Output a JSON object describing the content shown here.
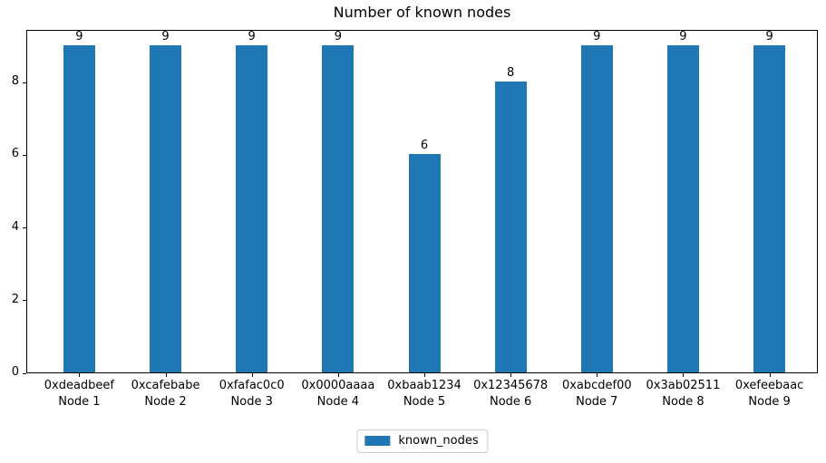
{
  "figure": {
    "title": "Number of known nodes"
  },
  "chart_data": {
    "type": "bar",
    "title": "Number of known nodes",
    "categories": [
      {
        "address": "0xdeadbeef",
        "node": "Node 1"
      },
      {
        "address": "0xcafebabe",
        "node": "Node 2"
      },
      {
        "address": "0xfafac0c0",
        "node": "Node 3"
      },
      {
        "address": "0x0000aaaa",
        "node": "Node 4"
      },
      {
        "address": "0xbaab1234",
        "node": "Node 5"
      },
      {
        "address": "0x12345678",
        "node": "Node 6"
      },
      {
        "address": "0xabcdef00",
        "node": "Node 7"
      },
      {
        "address": "0x3ab02511",
        "node": "Node 8"
      },
      {
        "address": "0xefeebaac",
        "node": "Node 9"
      }
    ],
    "series": [
      {
        "name": "known_nodes",
        "color": "#1f77b4",
        "values": [
          9,
          9,
          9,
          9,
          6,
          8,
          9,
          9,
          9
        ]
      }
    ],
    "bar_value_labels": [
      "9",
      "9",
      "9",
      "9",
      "6",
      "8",
      "9",
      "9",
      "9"
    ],
    "xlabel": "",
    "ylabel": "",
    "ylim": [
      0,
      9.4
    ],
    "yticks": [
      0,
      2,
      4,
      6,
      8
    ],
    "grid": false,
    "legend": {
      "label": "known_nodes",
      "position": "bottom-center"
    },
    "colors": {
      "bar": "#1f77b4",
      "axis": "#000000",
      "legend_border": "#cccccc",
      "background": "#ffffff"
    }
  }
}
